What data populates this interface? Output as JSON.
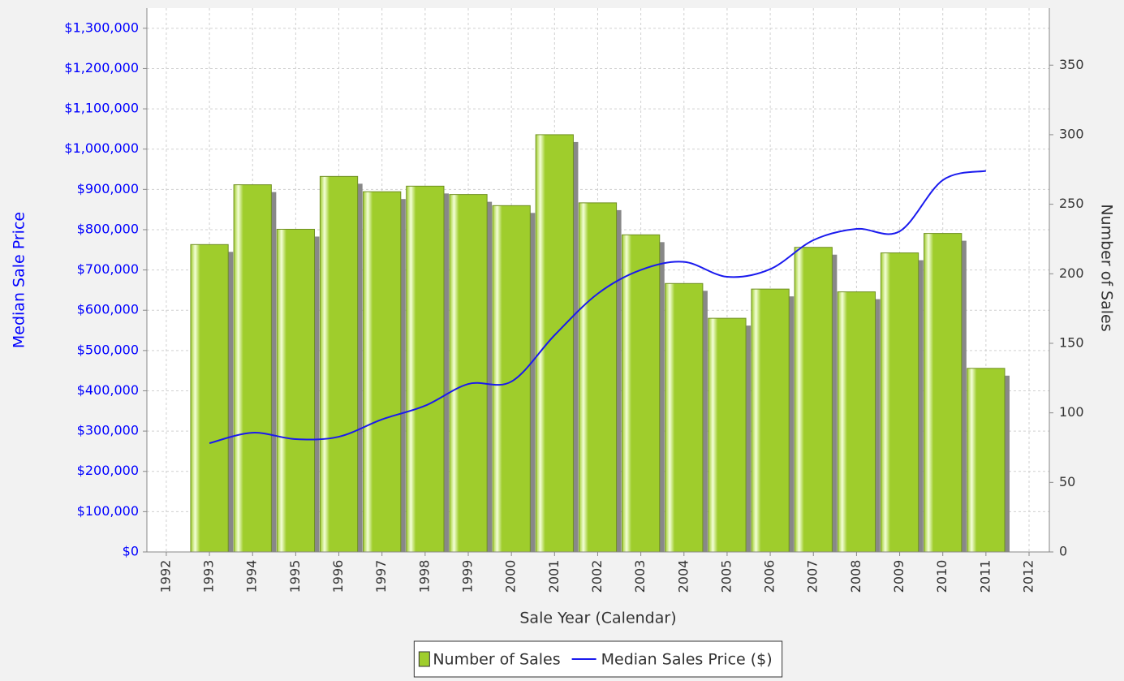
{
  "chart_data": {
    "type": "combo",
    "x_label": "Sale Year (Calendar)",
    "y_label": "Median Sale Price",
    "y2_label": "Number of Sales",
    "x": [
      1993,
      1994,
      1995,
      1996,
      1997,
      1998,
      1999,
      2000,
      2001,
      2002,
      2003,
      2004,
      2005,
      2006,
      2007,
      2008,
      2009,
      2010,
      2011
    ],
    "series": [
      {
        "name": "Number of Sales",
        "type": "bar",
        "axis": "y2",
        "color": "#9fcd2c",
        "values": [
          221,
          264,
          232,
          270,
          259,
          263,
          257,
          249,
          300,
          251,
          228,
          193,
          168,
          189,
          219,
          187,
          215,
          229,
          132
        ]
      },
      {
        "name": "Median Sales Price ($)",
        "type": "line",
        "color": "#1a1aee",
        "values": [
          270000,
          296000,
          280000,
          286000,
          329000,
          363000,
          417000,
          423000,
          538000,
          641000,
          700000,
          720000,
          683000,
          702000,
          774000,
          802000,
          796000,
          923000,
          946000
        ]
      }
    ],
    "xlim": [
      1991.55,
      2012.47
    ],
    "xticks": [
      1992,
      1993,
      1994,
      1995,
      1996,
      1997,
      1998,
      1999,
      2000,
      2001,
      2002,
      2003,
      2004,
      2005,
      2006,
      2007,
      2008,
      2009,
      2010,
      2011,
      2012
    ],
    "ylim": [
      0,
      1350000
    ],
    "yticks": [
      {
        "value": 0,
        "label": "$0"
      },
      {
        "value": 100000,
        "label": "$100,000"
      },
      {
        "value": 200000,
        "label": "$200,000"
      },
      {
        "value": 300000,
        "label": "$300,000"
      },
      {
        "value": 400000,
        "label": "$400,000"
      },
      {
        "value": 500000,
        "label": "$500,000"
      },
      {
        "value": 600000,
        "label": "$600,000"
      },
      {
        "value": 700000,
        "label": "$700,000"
      },
      {
        "value": 800000,
        "label": "$800,000"
      },
      {
        "value": 900000,
        "label": "$900,000"
      },
      {
        "value": 1000000,
        "label": "$1,000,000"
      },
      {
        "value": 1100000,
        "label": "$1,100,000"
      },
      {
        "value": 1200000,
        "label": "$1,200,000"
      },
      {
        "value": 1300000,
        "label": "$1,300,000"
      }
    ],
    "y2lim": [
      0,
      391
    ],
    "y2ticks": [
      0,
      50,
      100,
      150,
      200,
      250,
      300,
      350
    ],
    "y_axis_color": "#0000ff",
    "grid": true,
    "legend": "bottom"
  }
}
